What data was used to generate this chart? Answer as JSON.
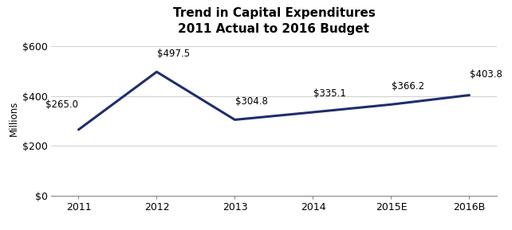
{
  "title_line1": "Trend in Capital Expenditures",
  "title_line2": "2011 Actual to 2016 Budget",
  "categories": [
    "2011",
    "2012",
    "2013",
    "2014",
    "2015E",
    "2016B"
  ],
  "values": [
    265.0,
    497.5,
    304.8,
    335.1,
    366.2,
    403.8
  ],
  "labels": [
    "$265.0",
    "$497.5",
    "$304.8",
    "$335.1",
    "$366.2",
    "$403.8"
  ],
  "line_color": "#1F2D6E",
  "line_width": 2.2,
  "ylabel": "Millions",
  "ylim": [
    0,
    620
  ],
  "yticks": [
    0,
    200,
    400,
    600
  ],
  "ytick_labels": [
    "$0",
    "$200",
    "$400",
    "$600"
  ],
  "background_color": "#ffffff",
  "grid_color": "#bbbbbb",
  "title_fontsize": 11,
  "label_fontsize": 8.5,
  "tick_fontsize": 9,
  "ylabel_fontsize": 8.5,
  "label_offsets_x": [
    -0.12,
    0.06,
    0.06,
    0.06,
    0.06,
    0.06
  ],
  "label_offsets_y": [
    18,
    12,
    12,
    12,
    12,
    14
  ],
  "label_ha": [
    "right",
    "left",
    "left",
    "left",
    "left",
    "left"
  ]
}
